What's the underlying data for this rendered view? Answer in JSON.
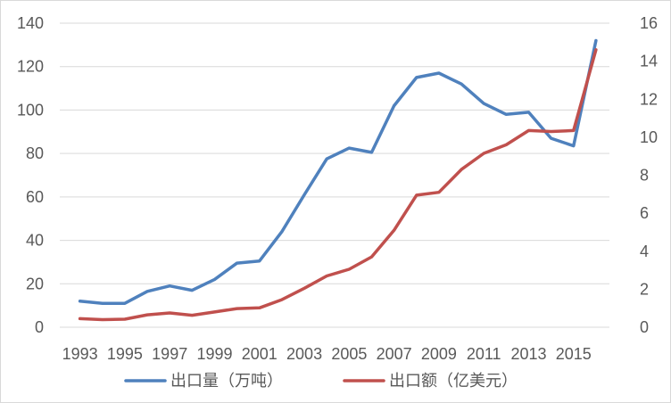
{
  "chart_data": {
    "type": "line",
    "title": "",
    "x": [
      1993,
      1994,
      1995,
      1996,
      1997,
      1998,
      1999,
      2000,
      2001,
      2002,
      2003,
      2004,
      2005,
      2006,
      2007,
      2008,
      2009,
      2010,
      2011,
      2012,
      2013,
      2014,
      2015,
      2016
    ],
    "x_tick_labels": [
      "1993",
      "1995",
      "1997",
      "1999",
      "2001",
      "2003",
      "2005",
      "2007",
      "2009",
      "2011",
      "2013",
      "2015"
    ],
    "x_tick_values": [
      1993,
      1995,
      1997,
      1999,
      2001,
      2003,
      2005,
      2007,
      2009,
      2011,
      2013,
      2015
    ],
    "xlim": [
      1992.1,
      2016.6
    ],
    "y_left": {
      "ylim": [
        0,
        140
      ],
      "ticks": [
        0,
        20,
        40,
        60,
        80,
        100,
        120,
        140
      ]
    },
    "y_right": {
      "ylim": [
        0,
        16
      ],
      "ticks": [
        0,
        2,
        4,
        6,
        8,
        10,
        12,
        14,
        16
      ]
    },
    "grid": true,
    "legend_position": "bottom",
    "series": [
      {
        "name": "出口量（万吨）",
        "axis": "left",
        "color": "#4f81bd",
        "values": [
          12,
          11,
          11,
          16.5,
          19,
          17,
          22,
          29.5,
          30.5,
          44,
          61,
          77.5,
          82.5,
          80.5,
          102,
          115,
          117,
          112,
          103,
          98,
          99,
          87,
          83.5,
          132
        ]
      },
      {
        "name": "出口额（亿美元）",
        "axis": "right",
        "color": "#c0504d",
        "values": [
          0.45,
          0.4,
          0.42,
          0.65,
          0.75,
          0.63,
          0.8,
          0.98,
          1.02,
          1.45,
          2.05,
          2.7,
          3.05,
          3.7,
          5.1,
          6.95,
          7.1,
          8.3,
          9.15,
          9.6,
          10.35,
          10.3,
          10.35,
          14.6
        ]
      }
    ]
  }
}
